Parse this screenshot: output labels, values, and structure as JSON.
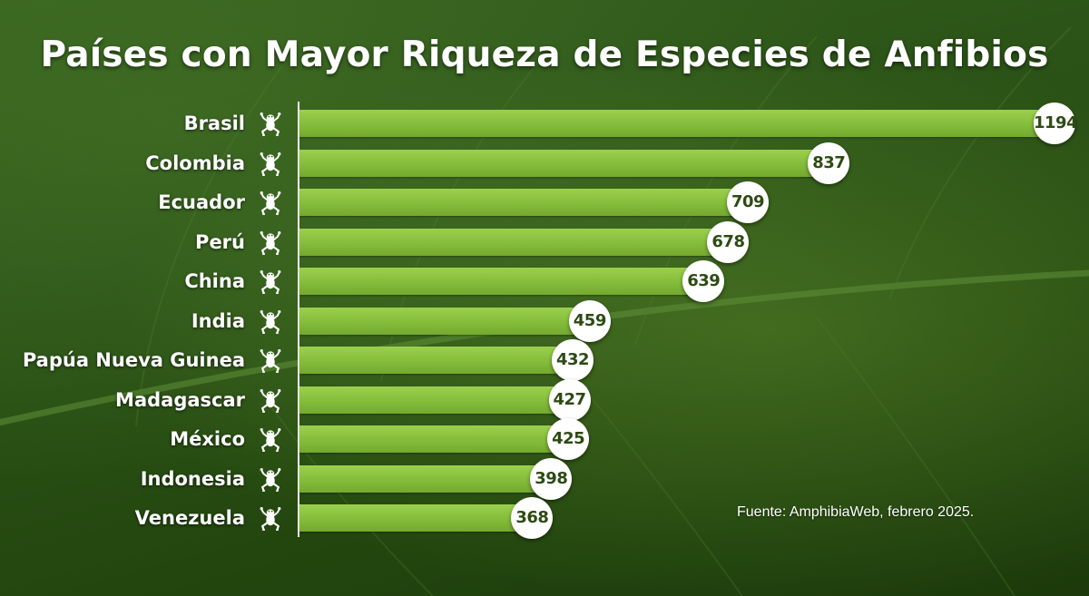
{
  "chart_data": {
    "type": "bar",
    "orientation": "horizontal",
    "title": "Países con Mayor Riqueza de Especies de Anfibios",
    "categories": [
      "Brasil",
      "Colombia",
      "Ecuador",
      "Perú",
      "China",
      "India",
      "Papúa Nueva Guinea",
      "Madagascar",
      "México",
      "Indonesia",
      "Venezuela"
    ],
    "values": [
      1194,
      837,
      709,
      678,
      639,
      459,
      432,
      427,
      425,
      398,
      368
    ],
    "xlim": [
      0,
      1194
    ],
    "xlabel": "",
    "ylabel": "",
    "grid": false,
    "legend": "none",
    "category_icon": "frog-icon",
    "source": "Fuente: AmphibiaWeb, febrero 2025.",
    "colors": {
      "bar": "#8cc63f",
      "label_bubble": "#ffffff",
      "label_text": "#2d4a14",
      "text": "#ffffff"
    }
  }
}
